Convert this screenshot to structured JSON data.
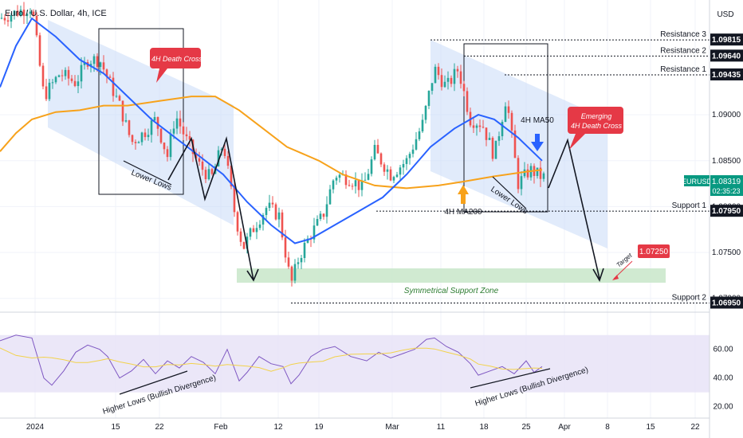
{
  "header": {
    "title": "Euro / U.S. Dollar, 4h, ICE",
    "currency": "USD"
  },
  "symbol_badge": {
    "symbol": "EURUSD",
    "price": "1.08319",
    "countdown": "02:35:23"
  },
  "colors": {
    "bull": "#26a69a",
    "bear": "#ef5350",
    "ma50": "#2962ff",
    "ma200": "#f7a21b",
    "channel": "#c9daf8",
    "support_zone": "#c8e6c9",
    "rsi_band": "#e9e4f7",
    "rsi_line": "#7e57c2",
    "rsi_ma": "#f2d24b",
    "callout": "#e53946",
    "symbol_badge": "#089981"
  },
  "annotations": {
    "death_cross": "4H Death Cross",
    "emerging_line1": "Emerging",
    "emerging_line2": "4H Death Cross",
    "ma50_label": "4H MA50",
    "ma200_label": "4H MA200",
    "lower_lows_1": "Lower Lows",
    "lower_lows_2": "Lower Lows",
    "support_zone": "Symmetrical Support Zone",
    "target": "Target",
    "target_price": "1.07250",
    "rsi_div_1": "Higher Lows (Bullish Divergence)",
    "rsi_div_2": "Higher Lows (Bullish Divergence)"
  },
  "levels": [
    {
      "name": "Resistance 3",
      "price": "1.09815"
    },
    {
      "name": "Resistance 2",
      "price": "1.09640"
    },
    {
      "name": "Resistance 1",
      "price": "1.09435"
    },
    {
      "name": "Support 1",
      "price": "1.07950"
    },
    {
      "name": "Support 2",
      "price": "1.06950"
    }
  ],
  "chart_data": {
    "type": "line",
    "title": "Euro / U.S. Dollar, 4h, ICE",
    "ylim": [
      1.0685,
      1.1025
    ],
    "y_ticks": [
      "1.09000",
      "1.08500",
      "1.08000",
      "1.07500",
      "1.07000"
    ],
    "x_ticks": [
      "2024",
      "15",
      "22",
      "Feb",
      "12",
      "19",
      "Mar",
      "11",
      "18",
      "25",
      "Apr",
      "8",
      "15",
      "22"
    ],
    "close_points": [
      [
        0,
        1.1005
      ],
      [
        40,
        1.1018
      ],
      [
        55,
        1.092
      ],
      [
        75,
        1.0945
      ],
      [
        95,
        1.0935
      ],
      [
        110,
        1.096
      ],
      [
        125,
        1.096
      ],
      [
        135,
        1.094
      ],
      [
        150,
        1.091
      ],
      [
        165,
        1.087
      ],
      [
        180,
        1.088
      ],
      [
        195,
        1.0895
      ],
      [
        210,
        1.0855
      ],
      [
        220,
        1.09
      ],
      [
        235,
        1.087
      ],
      [
        250,
        1.0845
      ],
      [
        265,
        1.083
      ],
      [
        280,
        1.087
      ],
      [
        295,
        1.079
      ],
      [
        305,
        1.0755
      ],
      [
        320,
        1.078
      ],
      [
        335,
        1.08
      ],
      [
        350,
        1.079
      ],
      [
        365,
        1.0715
      ],
      [
        375,
        1.0745
      ],
      [
        390,
        1.077
      ],
      [
        405,
        1.079
      ],
      [
        420,
        1.0835
      ],
      [
        440,
        1.083
      ],
      [
        455,
        1.082
      ],
      [
        470,
        1.086
      ],
      [
        490,
        1.0835
      ],
      [
        510,
        1.085
      ],
      [
        530,
        1.089
      ],
      [
        545,
        1.095
      ],
      [
        560,
        1.093
      ],
      [
        575,
        1.095
      ],
      [
        590,
        1.0895
      ],
      [
        605,
        1.089
      ],
      [
        620,
        1.0855
      ],
      [
        635,
        1.092
      ],
      [
        650,
        1.0825
      ],
      [
        665,
        1.084
      ],
      [
        680,
        1.0832
      ]
    ],
    "series": [
      {
        "name": "4H MA50",
        "points": [
          [
            0,
            1.093
          ],
          [
            20,
            1.0975
          ],
          [
            40,
            1.1005
          ],
          [
            70,
            1.0985
          ],
          [
            100,
            1.096
          ],
          [
            130,
            1.0945
          ],
          [
            160,
            1.092
          ],
          [
            190,
            1.0895
          ],
          [
            220,
            1.0875
          ],
          [
            250,
            1.0855
          ],
          [
            280,
            1.0835
          ],
          [
            310,
            1.0805
          ],
          [
            340,
            1.078
          ],
          [
            370,
            1.076
          ],
          [
            390,
            1.0765
          ],
          [
            420,
            1.078
          ],
          [
            450,
            1.0795
          ],
          [
            480,
            1.081
          ],
          [
            510,
            1.0835
          ],
          [
            540,
            1.0865
          ],
          [
            570,
            1.0885
          ],
          [
            600,
            1.09
          ],
          [
            620,
            1.0895
          ],
          [
            650,
            1.0875
          ],
          [
            680,
            1.085
          ]
        ]
      },
      {
        "name": "4H MA200",
        "points": [
          [
            0,
            1.086
          ],
          [
            20,
            1.088
          ],
          [
            40,
            1.0895
          ],
          [
            70,
            1.0903
          ],
          [
            100,
            1.0905
          ],
          [
            130,
            1.091
          ],
          [
            160,
            1.091
          ],
          [
            200,
            1.0915
          ],
          [
            240,
            1.092
          ],
          [
            270,
            1.092
          ],
          [
            300,
            1.0905
          ],
          [
            330,
            1.0885
          ],
          [
            360,
            1.0865
          ],
          [
            400,
            1.085
          ],
          [
            430,
            1.0835
          ],
          [
            470,
            1.0823
          ],
          [
            510,
            1.082
          ],
          [
            550,
            1.0823
          ],
          [
            580,
            1.0827
          ],
          [
            620,
            1.0833
          ],
          [
            660,
            1.0838
          ],
          [
            680,
            1.084
          ]
        ]
      },
      {
        "name": "RSI",
        "points": [
          [
            0,
            66
          ],
          [
            20,
            70
          ],
          [
            40,
            68
          ],
          [
            55,
            40
          ],
          [
            65,
            35
          ],
          [
            80,
            45
          ],
          [
            95,
            58
          ],
          [
            110,
            63
          ],
          [
            125,
            60
          ],
          [
            135,
            55
          ],
          [
            150,
            40
          ],
          [
            165,
            45
          ],
          [
            180,
            53
          ],
          [
            195,
            43
          ],
          [
            210,
            52
          ],
          [
            225,
            47
          ],
          [
            240,
            55
          ],
          [
            255,
            51
          ],
          [
            270,
            43
          ],
          [
            285,
            60
          ],
          [
            300,
            38
          ],
          [
            310,
            44
          ],
          [
            325,
            55
          ],
          [
            340,
            50
          ],
          [
            355,
            48
          ],
          [
            365,
            36
          ],
          [
            375,
            42
          ],
          [
            390,
            55
          ],
          [
            405,
            60
          ],
          [
            420,
            62
          ],
          [
            440,
            55
          ],
          [
            460,
            52
          ],
          [
            475,
            58
          ],
          [
            490,
            54
          ],
          [
            505,
            57
          ],
          [
            520,
            60
          ],
          [
            535,
            67
          ],
          [
            545,
            68
          ],
          [
            560,
            62
          ],
          [
            575,
            58
          ],
          [
            590,
            50
          ],
          [
            600,
            42
          ],
          [
            615,
            45
          ],
          [
            630,
            48
          ],
          [
            645,
            43
          ],
          [
            660,
            52
          ],
          [
            670,
            44
          ],
          [
            680,
            48
          ]
        ]
      }
    ],
    "rsi_ticks": [
      "60.00",
      "40.00",
      "20.00"
    ],
    "rsi_band": [
      30,
      70
    ]
  }
}
